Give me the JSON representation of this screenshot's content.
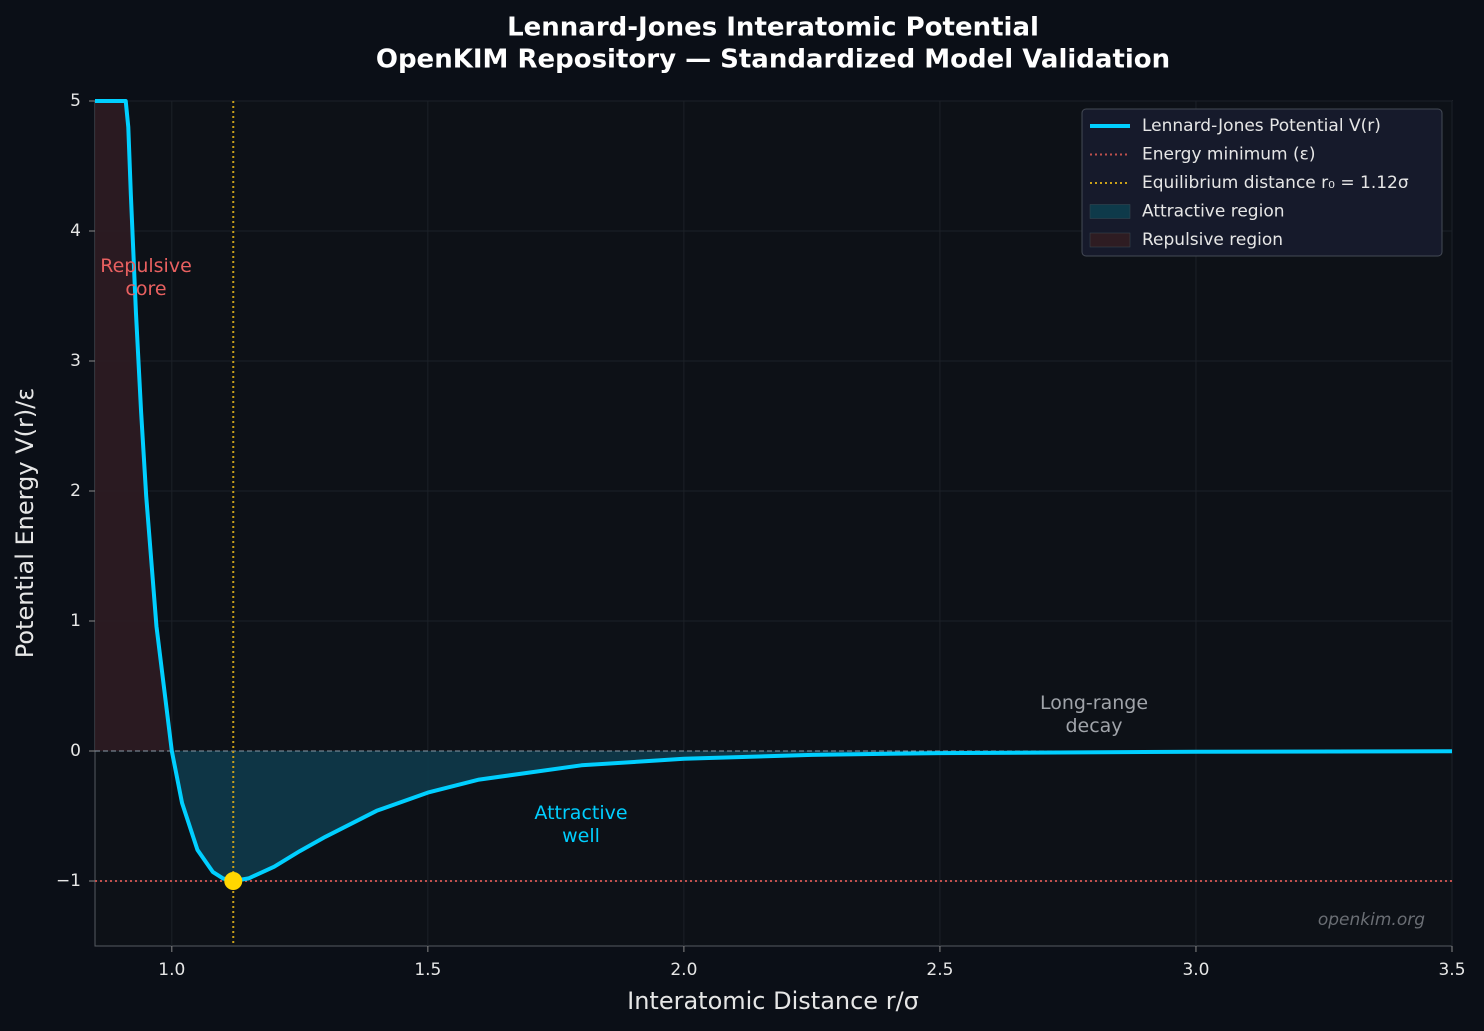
{
  "chart_data": {
    "type": "line",
    "title": "Lennard-Jones Interatomic Potential",
    "subtitle": "OpenKIM Repository — Standardized Model Validation",
    "x_label": "Interatomic Distance r/σ",
    "y_label": "Potential Energy V(r)/ε",
    "x": [
      0.85,
      0.9,
      0.91,
      0.915,
      0.92,
      0.93,
      0.94,
      0.95,
      0.97,
      1.0,
      1.02,
      1.05,
      1.08,
      1.1,
      1.12,
      1.15,
      1.2,
      1.25,
      1.3,
      1.4,
      1.5,
      1.6,
      1.8,
      2.0,
      2.25,
      2.5,
      3.0,
      3.5
    ],
    "series": [
      {
        "name": "Lennard-Jones Potential V(r)",
        "color": "#00cfff",
        "values": [
          5,
          5,
          5,
          4.8,
          4.28,
          3.37,
          2.61,
          1.96,
          0.96,
          0,
          -0.4,
          -0.76,
          -0.93,
          -0.98,
          -1,
          -0.98,
          -0.89,
          -0.77,
          -0.66,
          -0.46,
          -0.32,
          -0.22,
          -0.11,
          -0.06,
          -0.03,
          -0.016,
          -0.006,
          -0.002
        ]
      }
    ],
    "fills": [
      {
        "name": "Attractive region",
        "color": "#0e3a4a",
        "where": "below_zero"
      },
      {
        "name": "Repulsive region",
        "color": "#2e1c22",
        "where": "above_zero"
      }
    ],
    "reference_lines": [
      {
        "name": "Energy minimum (ε)",
        "axis": "y",
        "value": -1,
        "color": "#c0504d"
      },
      {
        "name": "Equilibrium distance r₀ = 1.12σ",
        "axis": "x",
        "value": 1.12,
        "color": "#c9a11a"
      }
    ],
    "min_point": {
      "x": 1.12,
      "y": -1,
      "color": "#ffd700"
    },
    "zero_line": true,
    "annotations": [
      {
        "text": [
          "Repulsive",
          "core"
        ],
        "color": "#e86060"
      },
      {
        "text": [
          "Attractive",
          "well"
        ],
        "color": "#00cfff"
      },
      {
        "text": [
          "Long-range",
          "decay"
        ],
        "color": "#a0a4aa"
      }
    ],
    "watermark": "openkim.org",
    "xlim": [
      0.85,
      3.5
    ],
    "ylim": [
      -1.5,
      5
    ],
    "xticks": [
      {
        "value": 1,
        "label": "1.0"
      },
      1.5,
      {
        "value": 2,
        "label": "2.0"
      },
      2.5,
      {
        "value": 3,
        "label": "3.0"
      },
      3.5
    ],
    "yticks": [
      {
        "value": -1,
        "label": "−1"
      },
      0,
      1,
      2,
      3,
      4,
      5
    ],
    "grid": true,
    "legend": "upper right"
  }
}
